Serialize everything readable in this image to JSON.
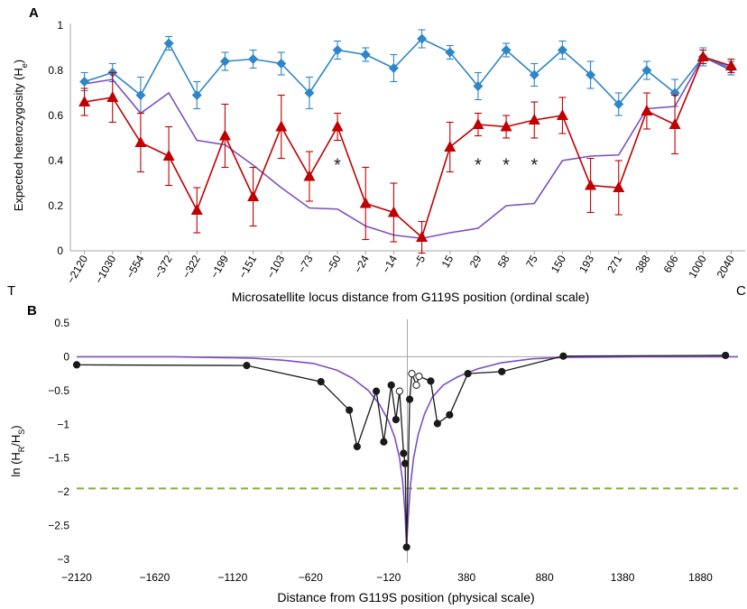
{
  "panel_a": {
    "label": "A",
    "ylabel_main": "Expected heterozygosity (H",
    "ylabel_sub": "e",
    "ylabel_close": ")",
    "xlabel": "Microsatellite locus distance from G119S position  (ordinal scale)",
    "left_end_label": "T",
    "right_end_label": "C",
    "significance_marker": "*"
  },
  "panel_b": {
    "label": "B",
    "ylabel_pre": "ln (H",
    "ylabel_sub1": "R",
    "ylabel_mid": "/H",
    "ylabel_sub2": "S",
    "ylabel_close": ")",
    "xlabel": "Distance from G119S position (physical scale)"
  },
  "colors": {
    "blue": "#2e86c8",
    "red": "#c00000",
    "purple": "#7e4ec0",
    "black": "#1a1a1a",
    "green_dashed": "#8aac3a",
    "axis": "#a6a6a6"
  },
  "chart_data": [
    {
      "type": "line",
      "panel": "A",
      "categories": [
        "−2120",
        "−1030",
        "−554",
        "−372",
        "−322",
        "−199",
        "−151",
        "−103",
        "−73",
        "−50",
        "−24",
        "−14",
        "−5",
        "15",
        "29",
        "58",
        "75",
        "150",
        "193",
        "271",
        "388",
        "606",
        "1000",
        "2040"
      ],
      "ylim": [
        0,
        1
      ],
      "yticks": [
        "0",
        "0.2",
        "0.4",
        "0.6",
        "0.8",
        "1"
      ],
      "ytick_values": [
        0,
        0.2,
        0.4,
        0.6,
        0.8,
        1
      ],
      "grid": false,
      "series": [
        {
          "color": "#2e86c8",
          "marker": "diamond",
          "values": [
            0.75,
            0.79,
            0.69,
            0.92,
            0.69,
            0.84,
            0.85,
            0.83,
            0.7,
            0.89,
            0.87,
            0.81,
            0.94,
            0.88,
            0.73,
            0.89,
            0.78,
            0.89,
            0.78,
            0.65,
            0.8,
            0.7,
            0.86,
            0.81
          ],
          "error": [
            0.04,
            0.04,
            0.08,
            0.03,
            0.06,
            0.04,
            0.04,
            0.05,
            0.07,
            0.04,
            0.03,
            0.06,
            0.04,
            0.03,
            0.06,
            0.03,
            0.05,
            0.04,
            0.06,
            0.05,
            0.04,
            0.06,
            0.04,
            0.03
          ]
        },
        {
          "color": "#c00000",
          "marker": "triangle",
          "values": [
            0.66,
            0.68,
            0.48,
            0.42,
            0.18,
            0.51,
            0.24,
            0.55,
            0.33,
            0.55,
            0.21,
            0.17,
            0.06,
            0.46,
            0.56,
            0.55,
            0.58,
            0.6,
            0.29,
            0.28,
            0.62,
            0.56,
            0.86,
            0.82
          ],
          "error": [
            0.06,
            0.11,
            0.13,
            0.13,
            0.1,
            0.14,
            0.13,
            0.14,
            0.11,
            0.06,
            0.16,
            0.13,
            0.07,
            0.11,
            0.05,
            0.05,
            0.08,
            0.08,
            0.12,
            0.12,
            0.08,
            0.13,
            0.03,
            0.03
          ],
          "significant_indices": [
            9,
            14,
            15,
            16
          ]
        },
        {
          "color": "#7e4ec0",
          "marker": "none",
          "values": [
            0.74,
            0.76,
            0.61,
            0.7,
            0.49,
            0.47,
            0.38,
            0.28,
            0.19,
            0.185,
            0.11,
            0.07,
            0.055,
            0.08,
            0.1,
            0.2,
            0.21,
            0.4,
            0.42,
            0.425,
            0.63,
            0.64,
            0.86,
            0.8
          ]
        }
      ]
    },
    {
      "type": "line",
      "panel": "B",
      "xlim": [
        -2120,
        2120
      ],
      "ylim": [
        -3,
        0.5
      ],
      "xticks": [
        "−2120",
        "−1620",
        "−1120",
        "−620",
        "−120",
        "380",
        "880",
        "1380",
        "1880"
      ],
      "xtick_values": [
        -2120,
        -1620,
        -1120,
        -620,
        -120,
        380,
        880,
        1380,
        1880
      ],
      "yticks": [
        "0.5",
        "0",
        "−0.5",
        "−1",
        "−1.5",
        "−2",
        "−2.5",
        "−3"
      ],
      "ytick_values": [
        0.5,
        0,
        -0.5,
        -1,
        -1.5,
        -2,
        -2.5,
        -3
      ],
      "threshold": -1.95,
      "series": [
        {
          "color": "#1a1a1a",
          "marker": "circle",
          "x": [
            -2120,
            -1030,
            -554,
            -372,
            -322,
            -199,
            -151,
            -103,
            -73,
            -50,
            -24,
            -14,
            -5,
            15,
            29,
            58,
            75,
            150,
            193,
            271,
            388,
            606,
            1000,
            2040
          ],
          "y": [
            -0.12,
            -0.13,
            -0.37,
            -0.79,
            -1.33,
            -0.51,
            -1.26,
            -0.42,
            -0.93,
            -0.51,
            -1.43,
            -1.58,
            -2.82,
            -0.63,
            -0.25,
            -0.42,
            -0.29,
            -0.36,
            -0.99,
            -0.86,
            -0.25,
            -0.22,
            0.01,
            0.02
          ],
          "hollow_indices": [
            9,
            14,
            15,
            16
          ]
        },
        {
          "color": "#7e4ec0",
          "marker": "none",
          "x": [
            -2120,
            -1500,
            -1000,
            -800,
            -600,
            -450,
            -350,
            -250,
            -180,
            -120,
            -80,
            -50,
            -30,
            -15,
            -5,
            5,
            20,
            40,
            70,
            110,
            160,
            230,
            320,
            450,
            600,
            800,
            1000,
            1500,
            2120
          ],
          "y": [
            0,
            0,
            -0.02,
            -0.05,
            -0.1,
            -0.2,
            -0.32,
            -0.5,
            -0.7,
            -0.95,
            -1.2,
            -1.5,
            -1.85,
            -2.3,
            -2.8,
            -2.4,
            -1.9,
            -1.5,
            -1.15,
            -0.85,
            -0.6,
            -0.42,
            -0.3,
            -0.18,
            -0.09,
            -0.03,
            -0.01,
            0,
            0
          ]
        }
      ]
    }
  ]
}
